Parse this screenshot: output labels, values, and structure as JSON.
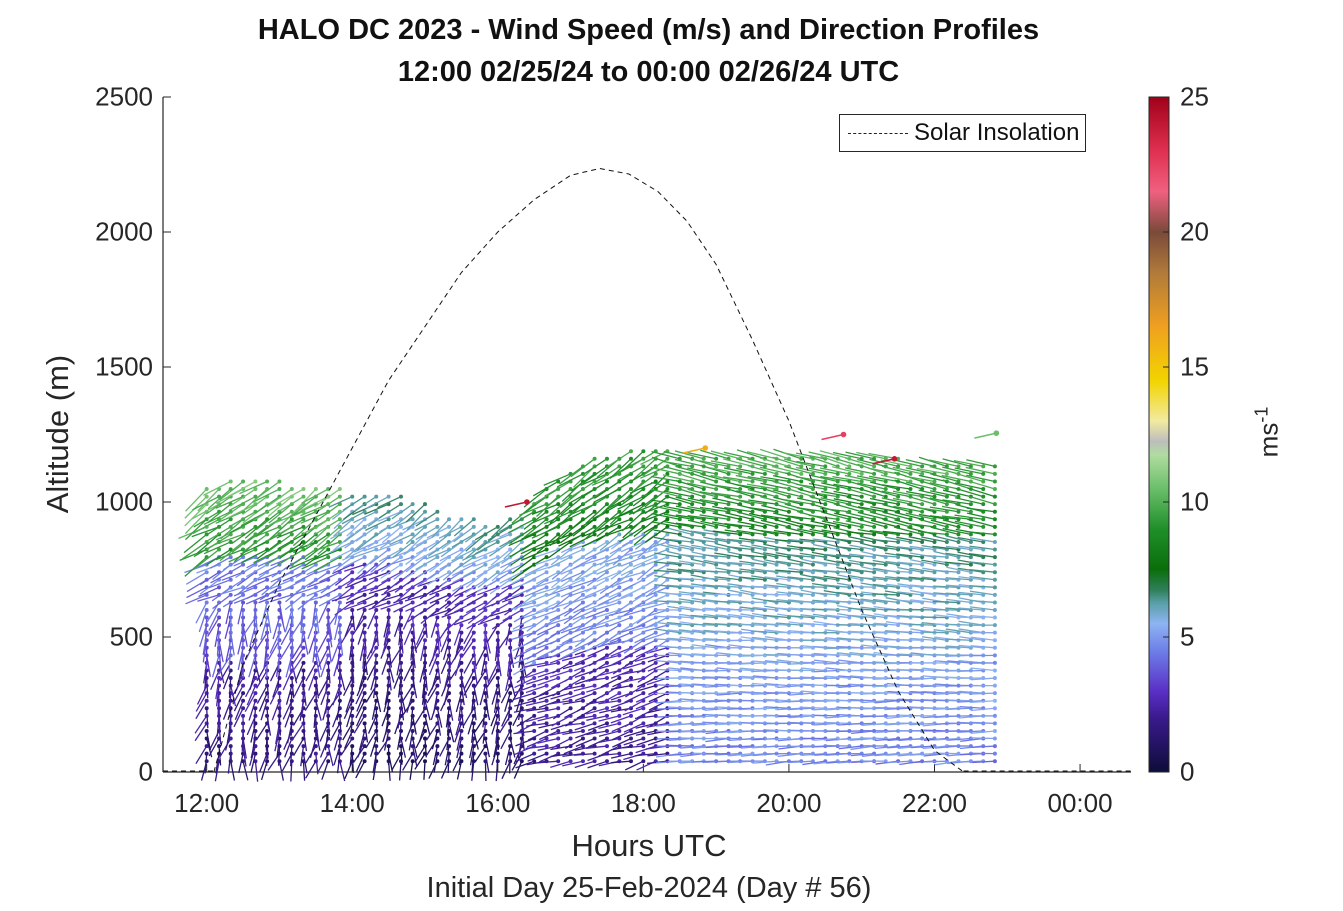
{
  "figure": {
    "title_line1": "HALO DC 2023 - Wind Speed (m/s) and Direction Profiles",
    "title_line2": "12:00 02/25/24 to 00:00 02/26/24  UTC",
    "footer": "Initial Day 25-Feb-2024 (Day # 56)"
  },
  "chart_data": {
    "type": "quiver",
    "title": "HALO DC 2023 - Wind Speed (m/s) and Direction Profiles",
    "subtitle": "12:00 02/25/24 to 00:00 02/26/24  UTC",
    "xlabel": "Hours UTC",
    "ylabel": "Altitude (m)",
    "xlim_hours": [
      11.4,
      24.7
    ],
    "ylim": [
      0,
      2500
    ],
    "x_ticks": [
      {
        "value": 12,
        "label": "12:00"
      },
      {
        "value": 14,
        "label": "14:00"
      },
      {
        "value": 16,
        "label": "16:00"
      },
      {
        "value": 18,
        "label": "18:00"
      },
      {
        "value": 20,
        "label": "20:00"
      },
      {
        "value": 22,
        "label": "22:00"
      },
      {
        "value": 24,
        "label": "00:00"
      }
    ],
    "y_ticks": [
      0,
      500,
      1000,
      1500,
      2000,
      2500
    ],
    "legend": {
      "entries": [
        "Solar Insolation"
      ],
      "placement": "top-right"
    },
    "colorbar": {
      "label": "ms-1",
      "label_base": "ms",
      "label_exp": "-1",
      "min": 0,
      "max": 25,
      "ticks": [
        0,
        5,
        10,
        15,
        20,
        25
      ]
    },
    "solar_insolation": {
      "style": "dashed black",
      "hours": [
        12.1,
        12.5,
        13.0,
        13.5,
        14.0,
        14.5,
        15.0,
        15.5,
        16.0,
        16.5,
        17.0,
        17.4,
        17.8,
        18.2,
        18.6,
        19.0,
        19.5,
        20.0,
        20.5,
        21.0,
        21.5,
        22.0,
        22.4
      ],
      "altitude_scaled": [
        0,
        400,
        700,
        950,
        1200,
        1450,
        1650,
        1850,
        2000,
        2120,
        2210,
        2235,
        2215,
        2150,
        2040,
        1880,
        1600,
        1300,
        950,
        600,
        300,
        80,
        0
      ]
    },
    "profiles": {
      "hours": [
        12.0,
        12.17,
        12.33,
        12.5,
        12.67,
        12.83,
        13.0,
        13.17,
        13.33,
        13.5,
        13.67,
        13.83,
        14.0,
        14.17,
        14.33,
        14.5,
        14.67,
        14.83,
        15.0,
        15.17,
        15.33,
        15.5,
        15.67,
        15.83,
        16.0,
        16.17,
        16.33,
        16.5,
        16.67,
        16.83,
        17.0,
        17.17,
        17.33,
        17.5,
        17.67,
        17.83,
        18.0,
        18.17,
        18.33,
        18.5,
        18.67,
        18.83,
        19.0,
        19.17,
        19.33,
        19.5,
        19.67,
        19.83,
        20.0,
        20.17,
        20.33,
        20.5,
        20.67,
        20.83,
        21.0,
        21.17,
        21.33,
        21.5,
        21.67,
        21.83,
        22.0,
        22.17,
        22.33,
        22.5,
        22.67,
        22.83
      ],
      "top_altitude_m": [
        1050,
        1070,
        1080,
        1080,
        1080,
        1080,
        1080,
        1070,
        1070,
        1060,
        1060,
        1050,
        1040,
        1040,
        1030,
        1030,
        1020,
        1010,
        1000,
        980,
        960,
        950,
        940,
        930,
        930,
        940,
        960,
        1000,
        1060,
        1100,
        1120,
        1140,
        1160,
        1170,
        1180,
        1190,
        1190,
        1190,
        1190,
        1180,
        1180,
        1180,
        1180,
        1180,
        1170,
        1170,
        1170,
        1160,
        1160,
        1160,
        1160,
        1160,
        1160,
        1160,
        1160,
        1160,
        1160,
        1160,
        1150,
        1150,
        1150,
        1150,
        1150,
        1150,
        1150,
        1150
      ],
      "speed_regime_by_hour": [
        {
          "from": 12.0,
          "to": 14.0,
          "low_levels_ms": 1.5,
          "mid_levels_ms": 3.5,
          "upper_levels_ms": 9.0
        },
        {
          "from": 14.0,
          "to": 16.5,
          "low_levels_ms": 1.0,
          "mid_levels_ms": 2.0,
          "upper_levels_ms": 5.0
        },
        {
          "from": 16.5,
          "to": 18.5,
          "low_levels_ms": 2.0,
          "mid_levels_ms": 4.5,
          "upper_levels_ms": 8.0
        },
        {
          "from": 18.5,
          "to": 23.0,
          "low_levels_ms": 4.5,
          "mid_levels_ms": 5.5,
          "upper_levels_ms": 8.5
        }
      ],
      "isolated_high_speed_vectors": [
        {
          "hour": 16.4,
          "altitude": 1000,
          "speed_ms": 24
        },
        {
          "hour": 18.85,
          "altitude": 1200,
          "speed_ms": 16
        },
        {
          "hour": 20.75,
          "altitude": 1250,
          "speed_ms": 22.5
        },
        {
          "hour": 21.45,
          "altitude": 1160,
          "speed_ms": 24
        },
        {
          "hour": 22.85,
          "altitude": 1255,
          "speed_ms": 10.5
        }
      ]
    }
  }
}
